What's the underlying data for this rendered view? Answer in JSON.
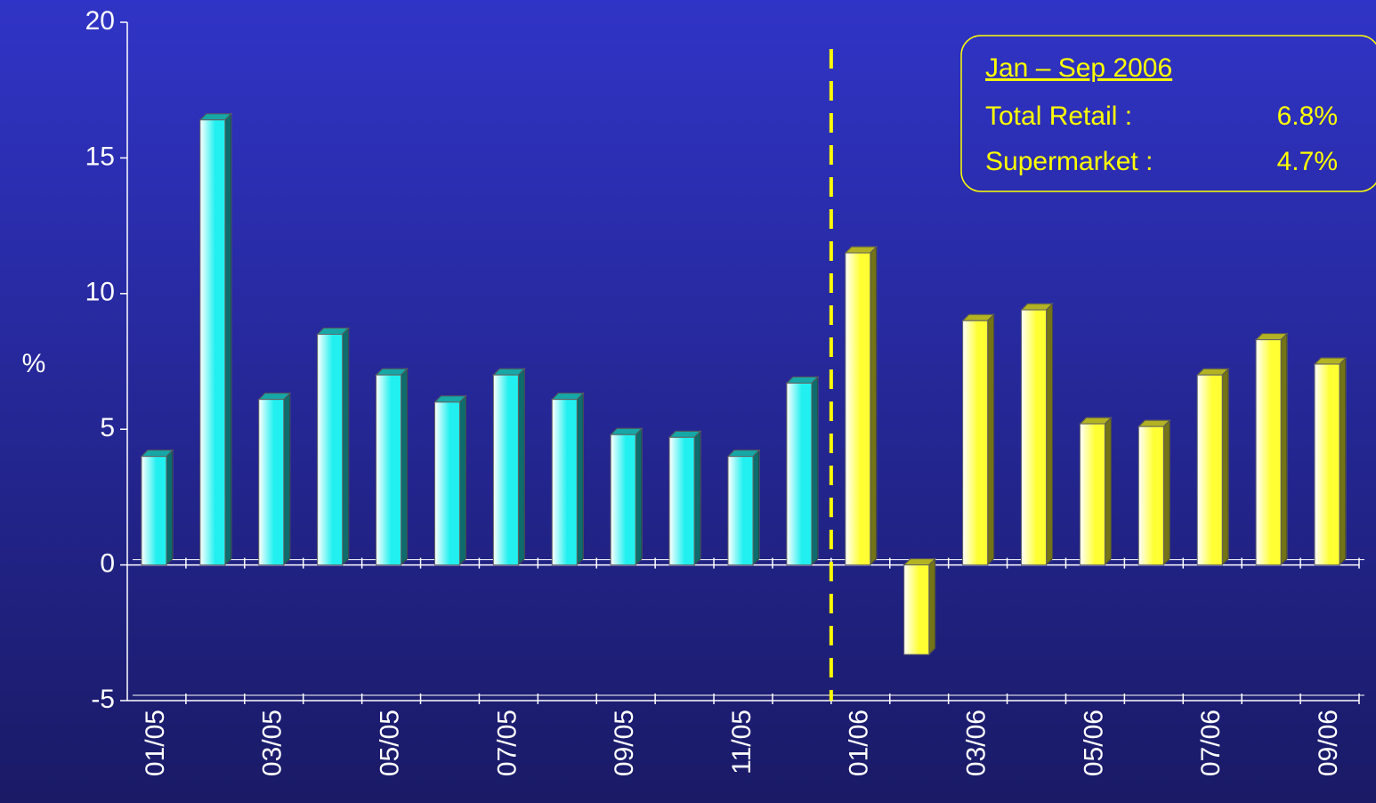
{
  "chart_data": {
    "type": "bar",
    "y_label": "%",
    "categories": [
      "01/05",
      null,
      "03/05",
      null,
      "05/05",
      null,
      "07/05",
      null,
      "09/05",
      null,
      "11/05",
      null,
      "01/06",
      null,
      "03/06",
      null,
      "05/06",
      null,
      "07/06",
      null,
      "09/06"
    ],
    "values": [
      4.0,
      16.4,
      6.1,
      8.5,
      7.0,
      6.0,
      7.0,
      6.1,
      4.8,
      4.7,
      4.0,
      6.7,
      11.5,
      -3.3,
      9.0,
      9.4,
      5.2,
      5.1,
      7.0,
      8.3,
      7.4
    ],
    "bar_colors": [
      "#22f0f0",
      "#22f0f0",
      "#22f0f0",
      "#22f0f0",
      "#22f0f0",
      "#22f0f0",
      "#22f0f0",
      "#22f0f0",
      "#22f0f0",
      "#22f0f0",
      "#22f0f0",
      "#22f0f0",
      "#ffff33",
      "#ffff33",
      "#ffff33",
      "#ffff33",
      "#ffff33",
      "#ffff33",
      "#ffff33",
      "#ffff33",
      "#ffff33"
    ],
    "ylim": [
      -5,
      20
    ],
    "yticks": [
      -5,
      0,
      5,
      10,
      15,
      20
    ],
    "annotation": {
      "title": "Jan – Sep 2006",
      "rows": [
        {
          "label": "Total Retail :",
          "value": "6.8%"
        },
        {
          "label": "Supermarket :",
          "value": "4.7%"
        }
      ]
    }
  }
}
